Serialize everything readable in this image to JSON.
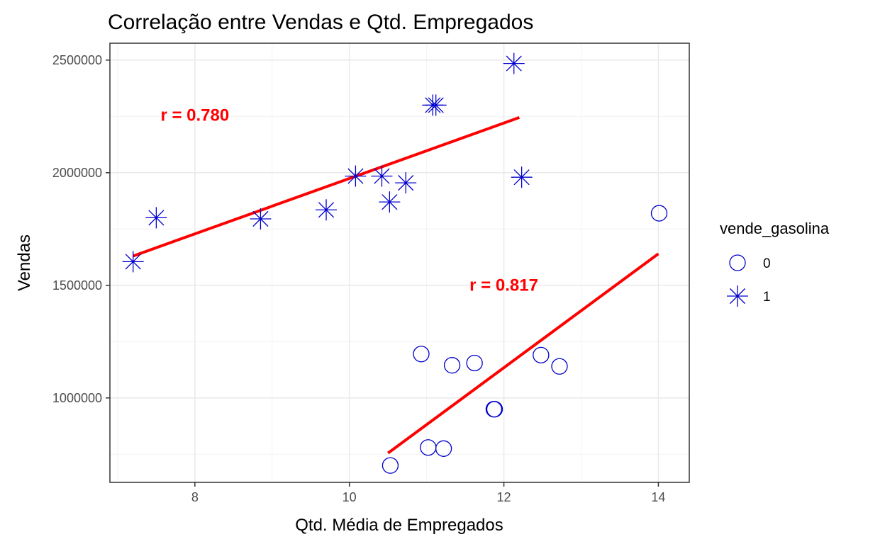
{
  "chart_data": {
    "type": "scatter",
    "title": "Correlação entre Vendas e Qtd. Empregados",
    "xlabel": "Qtd. Média de Empregados",
    "ylabel": "Vendas",
    "xlim": [
      6.9,
      14.4
    ],
    "ylim": [
      625000,
      2575000
    ],
    "x_ticks": [
      8,
      10,
      12,
      14
    ],
    "x_tick_labels": [
      "8",
      "10",
      "12",
      "14"
    ],
    "y_ticks": [
      1000000,
      1500000,
      2000000,
      2500000
    ],
    "y_tick_labels": [
      "1000000",
      "1500000",
      "2000000",
      "2500000"
    ],
    "x_minor_ticks": [
      7,
      9,
      11,
      13
    ],
    "y_minor_ticks": [
      750000,
      1250000,
      1750000,
      2250000
    ],
    "grid": true,
    "legend": {
      "title": "vende_gasolina",
      "position": "right",
      "entries": [
        {
          "label": "0",
          "shape": "circle"
        },
        {
          "label": "1",
          "shape": "asterisk"
        }
      ]
    },
    "point_color": "#0000cc",
    "line_color": "#ff0000",
    "series": [
      {
        "name": "0",
        "shape": "circle",
        "points": [
          [
            10.53,
            700000
          ],
          [
            10.93,
            1195000
          ],
          [
            11.02,
            780000
          ],
          [
            11.22,
            775000
          ],
          [
            11.33,
            1145000
          ],
          [
            11.62,
            1155000
          ],
          [
            11.87,
            950000
          ],
          [
            11.88,
            950000
          ],
          [
            12.48,
            1190000
          ],
          [
            12.72,
            1140000
          ],
          [
            14.01,
            1820000
          ]
        ],
        "fit_line": {
          "x1": 10.5,
          "y1": 755000,
          "x2": 14.0,
          "y2": 1640000
        },
        "annotation": {
          "text": "r = 0.817",
          "x": 12.0,
          "y": 1475000
        }
      },
      {
        "name": "1",
        "shape": "asterisk",
        "points": [
          [
            7.2,
            1605000
          ],
          [
            7.5,
            1800000
          ],
          [
            8.85,
            1795000
          ],
          [
            9.7,
            1835000
          ],
          [
            10.08,
            1985000
          ],
          [
            10.42,
            1985000
          ],
          [
            10.52,
            1870000
          ],
          [
            10.73,
            1955000
          ],
          [
            11.08,
            2300000
          ],
          [
            11.12,
            2300000
          ],
          [
            12.13,
            2485000
          ],
          [
            12.23,
            1980000
          ]
        ],
        "fit_line": {
          "x1": 7.2,
          "y1": 1630000,
          "x2": 12.2,
          "y2": 2245000
        },
        "annotation": {
          "text": "r = 0.780",
          "x": 8.0,
          "y": 2230000
        }
      }
    ]
  }
}
